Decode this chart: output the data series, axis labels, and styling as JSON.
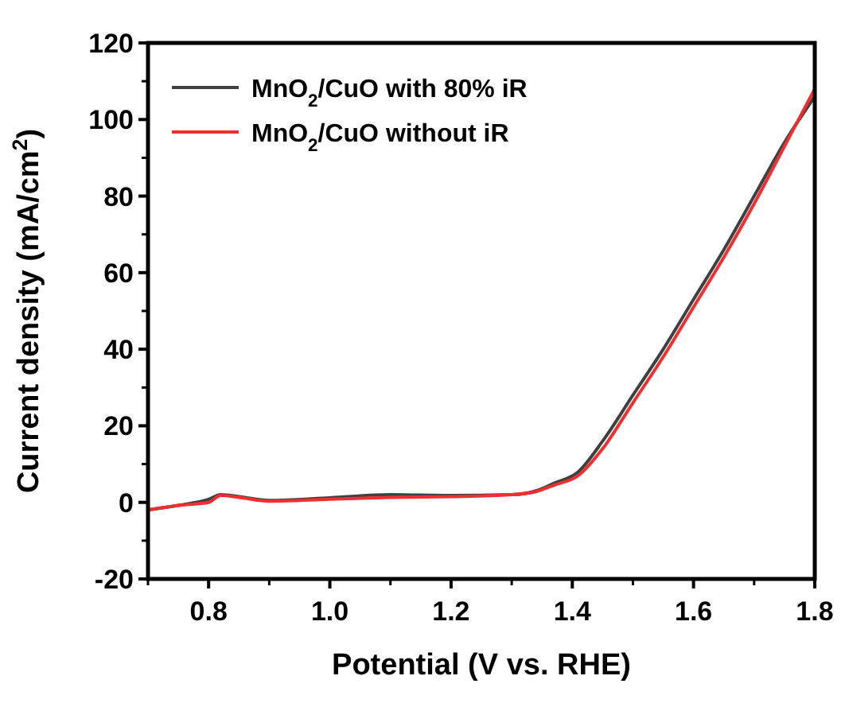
{
  "chart_data": {
    "type": "line",
    "xlabel": "Potential (V vs. RHE)",
    "ylabel": "Current density (mA/cm$^{2}$)",
    "xlim": [
      0.7,
      1.8
    ],
    "ylim": [
      -20,
      120
    ],
    "xticks": [
      {
        "value": 0.8,
        "label": "0.8"
      },
      {
        "value": 1,
        "label": "1.0"
      },
      {
        "value": 1.2,
        "label": "1.2"
      },
      {
        "value": 1.4,
        "label": "1.4"
      },
      {
        "value": 1.6,
        "label": "1.6"
      },
      {
        "value": 1.8,
        "label": "1.8"
      }
    ],
    "yticks": [
      -20,
      0,
      20,
      40,
      60,
      80,
      100,
      120
    ],
    "legend": "top left",
    "grid": false,
    "line_style": "solid",
    "series": [
      {
        "name": "MnO$_{2}$/CuO with 80% iR",
        "color": "#404040",
        "x": [
          0.7,
          0.75,
          0.8,
          0.82,
          0.85,
          0.9,
          1.0,
          1.1,
          1.2,
          1.3,
          1.34,
          1.37,
          1.41,
          1.45,
          1.5,
          1.55,
          1.6,
          1.65,
          1.7,
          1.75,
          1.8
        ],
        "values": [
          -2,
          -0.8,
          0.8,
          2,
          1.5,
          0.5,
          1.2,
          2,
          1.8,
          2,
          3,
          5,
          8,
          16,
          28,
          40,
          53,
          66,
          80,
          94,
          106
        ]
      },
      {
        "name": "MnO$_{2}$/CuO without iR",
        "color": "#f03030",
        "x": [
          0.7,
          0.75,
          0.8,
          0.82,
          0.85,
          0.9,
          1.0,
          1.1,
          1.2,
          1.3,
          1.34,
          1.37,
          1.41,
          1.45,
          1.5,
          1.55,
          1.6,
          1.65,
          1.7,
          1.75,
          1.8
        ],
        "values": [
          -2,
          -0.8,
          0,
          1.8,
          1.3,
          0.3,
          0.8,
          1.3,
          1.5,
          2,
          2.8,
          4.5,
          7,
          14,
          26,
          38,
          51,
          64,
          78,
          93,
          108
        ]
      }
    ]
  }
}
